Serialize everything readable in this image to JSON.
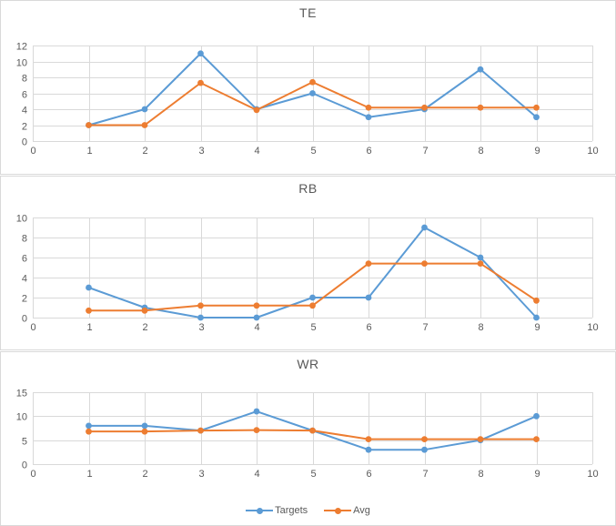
{
  "page": {
    "background": "#ffffff",
    "chart_border_color": "#d9d9d9",
    "grid_color": "#d9d9d9",
    "text_color": "#595959",
    "targets_color": "#5b9bd5",
    "avg_color": "#ed7d31"
  },
  "legend": {
    "items": [
      {
        "label": "Targets",
        "color": "#5b9bd5"
      },
      {
        "label": "Avg",
        "color": "#ed7d31"
      }
    ]
  },
  "chart_data": [
    {
      "type": "line",
      "title": "TE",
      "x": [
        1,
        2,
        3,
        4,
        5,
        6,
        7,
        8,
        9
      ],
      "series": [
        {
          "name": "Targets",
          "color": "#5b9bd5",
          "values": [
            2,
            4,
            11,
            4,
            6,
            3,
            4,
            9,
            3
          ]
        },
        {
          "name": "Avg",
          "color": "#ed7d31",
          "values": [
            2,
            2,
            7.3,
            3.9,
            7.4,
            4.2,
            4.2,
            4.2,
            4.2
          ]
        }
      ],
      "xlim": [
        0,
        10
      ],
      "ylim": [
        0,
        12
      ],
      "x_ticks": [
        0,
        1,
        2,
        3,
        4,
        5,
        6,
        7,
        8,
        9,
        10
      ],
      "y_ticks": [
        0,
        2,
        4,
        6,
        8,
        10,
        12
      ],
      "grid": true,
      "legend_position": "none",
      "xlabel": "",
      "ylabel": ""
    },
    {
      "type": "line",
      "title": "RB",
      "x": [
        1,
        2,
        3,
        4,
        5,
        6,
        7,
        8,
        9
      ],
      "series": [
        {
          "name": "Targets",
          "color": "#5b9bd5",
          "values": [
            3,
            1,
            0,
            0,
            2,
            2,
            9,
            6,
            0
          ]
        },
        {
          "name": "Avg",
          "color": "#ed7d31",
          "values": [
            0.7,
            0.7,
            1.2,
            1.2,
            1.2,
            5.4,
            5.4,
            5.4,
            1.7
          ]
        }
      ],
      "xlim": [
        0,
        10
      ],
      "ylim": [
        0,
        10
      ],
      "x_ticks": [
        0,
        1,
        2,
        3,
        4,
        5,
        6,
        7,
        8,
        9,
        10
      ],
      "y_ticks": [
        0,
        2,
        4,
        6,
        8,
        10
      ],
      "grid": true,
      "legend_position": "none",
      "xlabel": "",
      "ylabel": ""
    },
    {
      "type": "line",
      "title": "WR",
      "x": [
        1,
        2,
        3,
        4,
        5,
        6,
        7,
        8,
        9
      ],
      "series": [
        {
          "name": "Targets",
          "color": "#5b9bd5",
          "values": [
            8,
            8,
            7,
            11,
            7,
            3,
            3,
            5,
            10
          ]
        },
        {
          "name": "Avg",
          "color": "#ed7d31",
          "values": [
            6.8,
            6.8,
            7,
            7.1,
            7,
            5.2,
            5.2,
            5.2,
            5.2
          ]
        }
      ],
      "xlim": [
        0,
        10
      ],
      "ylim": [
        0,
        15
      ],
      "x_ticks": [
        0,
        1,
        2,
        3,
        4,
        5,
        6,
        7,
        8,
        9,
        10
      ],
      "y_ticks": [
        0,
        5,
        10,
        15
      ],
      "grid": true,
      "legend_position": "bottom",
      "xlabel": "",
      "ylabel": ""
    }
  ]
}
